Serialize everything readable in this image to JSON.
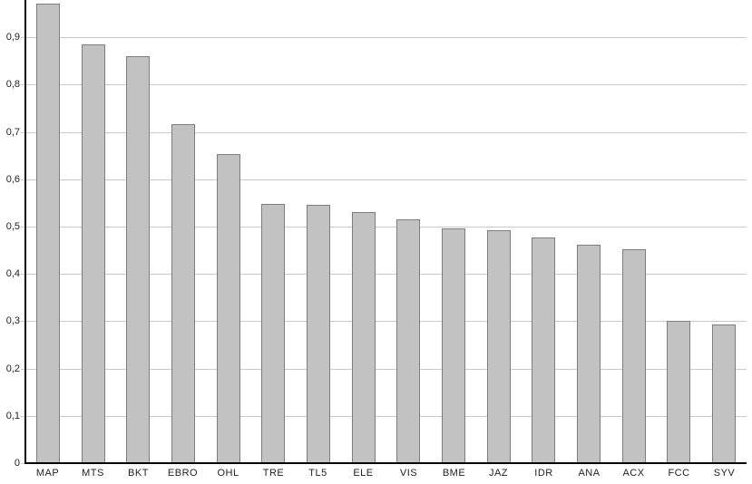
{
  "chart_data": {
    "type": "bar",
    "title": "",
    "xlabel": "",
    "ylabel": "",
    "categories": [
      "MAP",
      "MTS",
      "BKT",
      "EBRO",
      "OHL",
      "TRE",
      "TL5",
      "ELE",
      "VIS",
      "BME",
      "JAZ",
      "IDR",
      "ANA",
      "ACX",
      "FCC",
      "SYV"
    ],
    "values": [
      0.972,
      0.886,
      0.861,
      0.716,
      0.654,
      0.548,
      0.546,
      0.53,
      0.516,
      0.496,
      0.493,
      0.478,
      0.462,
      0.452,
      0.301,
      0.294
    ],
    "ylim": [
      0,
      0.979
    ],
    "yticks": [
      {
        "value": 0.0,
        "label": "0"
      },
      {
        "value": 0.1,
        "label": "0,1"
      },
      {
        "value": 0.2,
        "label": "0,2"
      },
      {
        "value": 0.3,
        "label": "0,3"
      },
      {
        "value": 0.4,
        "label": "0,4"
      },
      {
        "value": 0.5,
        "label": "0,5"
      },
      {
        "value": 0.6,
        "label": "0,6"
      },
      {
        "value": 0.7,
        "label": "0,7"
      },
      {
        "value": 0.8,
        "label": "0,8"
      },
      {
        "value": 0.9,
        "label": "0,9"
      }
    ],
    "grid": true,
    "legend": "none",
    "decimal_separator": ",",
    "colors": {
      "bar_fill": "#c2c2c2",
      "bar_border": "#7d7d7d",
      "gridline": "#c9c9c9",
      "axis": "#000000",
      "label_text": "#21212b",
      "background": "#ffffff"
    }
  }
}
